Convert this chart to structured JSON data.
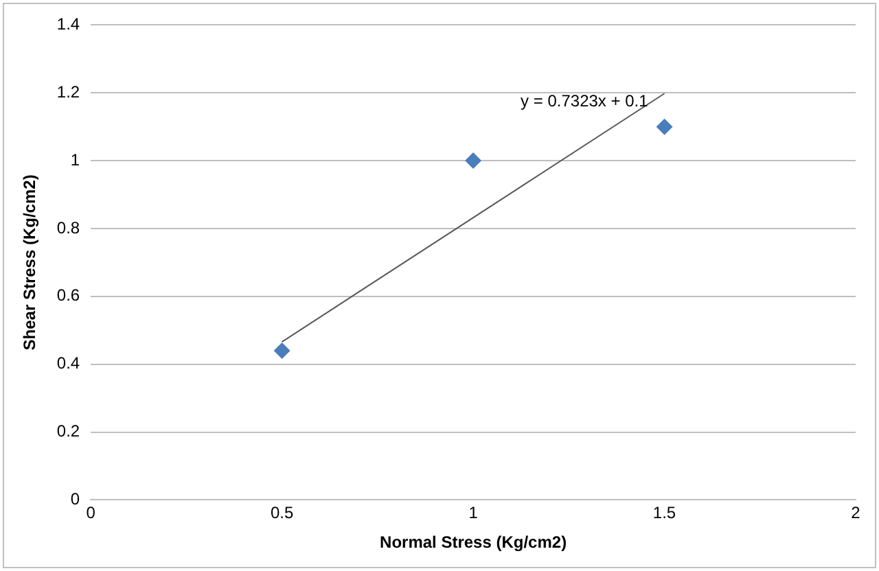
{
  "chart_data": {
    "type": "scatter",
    "xlabel": "Normal Stress (Kg/cm2)",
    "ylabel": "Shear Stress (Kg/cm2)",
    "series": [
      {
        "type": "scatter",
        "color": "#4a7ebb",
        "x": [
          0.5,
          1,
          1.5
        ],
        "values": [
          0.44,
          1.0,
          1.1
        ],
        "marker": "diamond"
      },
      {
        "type": "line",
        "color": "#595959",
        "x": [
          0.5,
          1.5
        ],
        "values": [
          0.466,
          1.198
        ],
        "marker": "none"
      }
    ],
    "annotations": [
      "y = 0.7323x + 0.1"
    ],
    "xlim": [
      0,
      2
    ],
    "xticks": [
      0,
      0.5,
      1,
      1.5,
      2
    ],
    "ylim": [
      0,
      1.4
    ],
    "yticks": [
      0,
      0.2,
      0.4,
      0.6,
      0.8,
      1,
      1.2,
      1.4
    ],
    "grid": "y",
    "legend": false
  }
}
